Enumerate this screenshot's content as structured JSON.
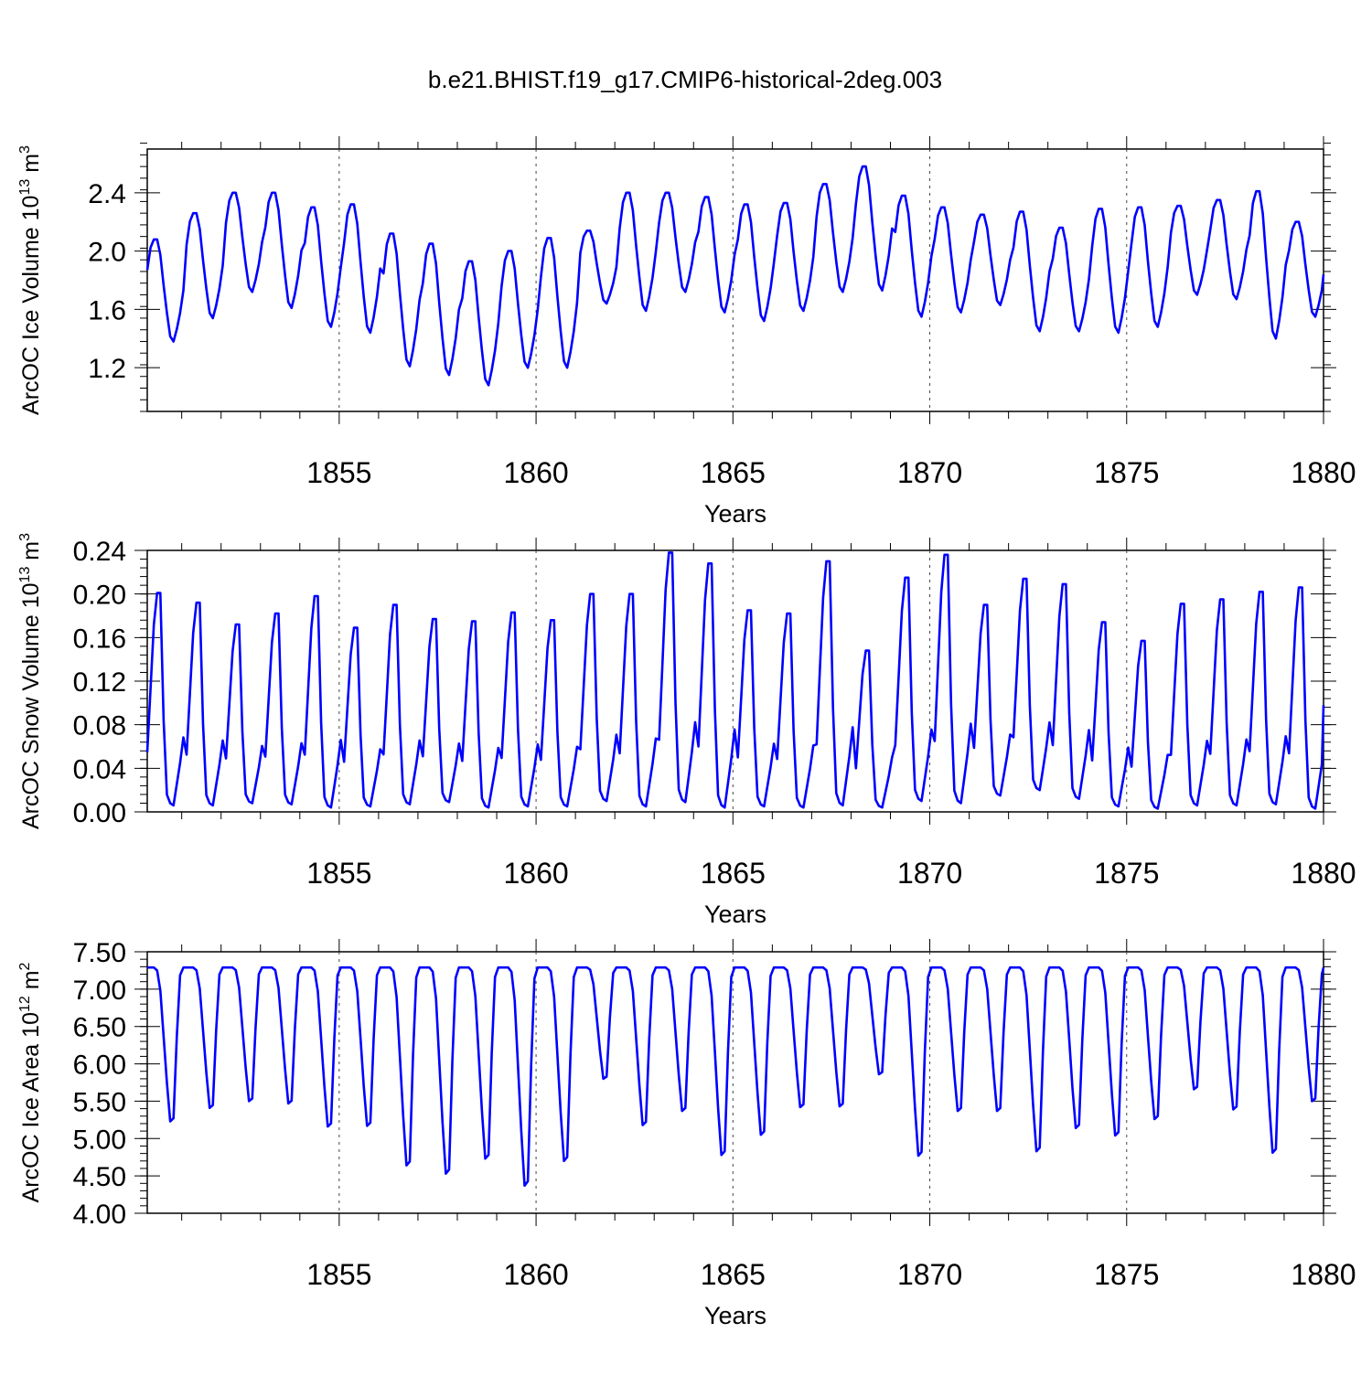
{
  "title": "b.e21.BHIST.f19_g17.CMIP6-historical-2deg.003",
  "line_color": "#0000ff",
  "chart_data": [
    {
      "type": "line",
      "ylabel_base": "ArcOC Ice Volume 10",
      "ylabel_exp": "13",
      "ylabel_unit": " m",
      "ylabel_unit_exp": "3",
      "xlabel": "Years",
      "xlim": [
        1850.125,
        1880.0
      ],
      "ylim": [
        0.9,
        2.7
      ],
      "yticks": [
        1.2,
        1.6,
        2.0,
        2.4
      ],
      "ytick_labels": [
        "1.2",
        "1.6",
        "2.0",
        "2.4"
      ],
      "yminor_step": 0.08,
      "xticks": [
        1855,
        1860,
        1865,
        1870,
        1875,
        1880
      ],
      "xtick_labels": [
        "1855",
        "1860",
        "1865",
        "1870",
        "1875",
        "1880"
      ],
      "x_start": 1850.125,
      "x_step": 0.08333,
      "annual": [
        {
          "max": 2.08,
          "min": 1.38
        },
        {
          "max": 2.26,
          "min": 1.54
        },
        {
          "max": 2.4,
          "min": 1.72
        },
        {
          "max": 2.4,
          "min": 1.61
        },
        {
          "max": 2.3,
          "min": 1.48
        },
        {
          "max": 2.32,
          "min": 1.44
        },
        {
          "max": 2.12,
          "min": 1.21
        },
        {
          "max": 2.05,
          "min": 1.15
        },
        {
          "max": 1.93,
          "min": 1.08
        },
        {
          "max": 2.0,
          "min": 1.2
        },
        {
          "max": 2.09,
          "min": 1.2
        },
        {
          "max": 2.14,
          "min": 1.64
        },
        {
          "max": 2.4,
          "min": 1.59
        },
        {
          "max": 2.4,
          "min": 1.72
        },
        {
          "max": 2.37,
          "min": 1.58
        },
        {
          "max": 2.32,
          "min": 1.52
        },
        {
          "max": 2.33,
          "min": 1.59
        },
        {
          "max": 2.46,
          "min": 1.72
        },
        {
          "max": 2.58,
          "min": 1.73
        },
        {
          "max": 2.38,
          "min": 1.55
        },
        {
          "max": 2.3,
          "min": 1.58
        },
        {
          "max": 2.25,
          "min": 1.63
        },
        {
          "max": 2.27,
          "min": 1.45
        },
        {
          "max": 2.16,
          "min": 1.45
        },
        {
          "max": 2.29,
          "min": 1.44
        },
        {
          "max": 2.3,
          "min": 1.48
        },
        {
          "max": 2.31,
          "min": 1.7
        },
        {
          "max": 2.35,
          "min": 1.67
        },
        {
          "max": 2.41,
          "min": 1.4
        },
        {
          "max": 2.2,
          "min": 1.55
        }
      ],
      "x_end_value": 1.84
    },
    {
      "type": "line",
      "ylabel_base": "ArcOC Snow Volume 10",
      "ylabel_exp": "13",
      "ylabel_unit": " m",
      "ylabel_unit_exp": "3",
      "xlabel": "Years",
      "xlim": [
        1850.125,
        1880.0
      ],
      "ylim": [
        0.0,
        0.24
      ],
      "yticks": [
        0.0,
        0.04,
        0.08,
        0.12,
        0.16,
        0.2,
        0.24
      ],
      "ytick_labels": [
        "0.00",
        "0.04",
        "0.08",
        "0.12",
        "0.16",
        "0.20",
        "0.24"
      ],
      "yminor_step": 0.008,
      "xticks": [
        1855,
        1860,
        1865,
        1870,
        1875,
        1880
      ],
      "xtick_labels": [
        "1855",
        "1860",
        "1865",
        "1870",
        "1875",
        "1880"
      ],
      "x_start": 1850.125,
      "x_step": 0.08333,
      "annual": [
        {
          "max": 0.201,
          "min": 0.006
        },
        {
          "max": 0.192,
          "min": 0.006
        },
        {
          "max": 0.172,
          "min": 0.008
        },
        {
          "max": 0.182,
          "min": 0.007
        },
        {
          "max": 0.198,
          "min": 0.004
        },
        {
          "max": 0.169,
          "min": 0.005
        },
        {
          "max": 0.19,
          "min": 0.007
        },
        {
          "max": 0.177,
          "min": 0.009
        },
        {
          "max": 0.175,
          "min": 0.004
        },
        {
          "max": 0.183,
          "min": 0.005
        },
        {
          "max": 0.176,
          "min": 0.005
        },
        {
          "max": 0.2,
          "min": 0.01
        },
        {
          "max": 0.2,
          "min": 0.005
        },
        {
          "max": 0.238,
          "min": 0.009
        },
        {
          "max": 0.228,
          "min": 0.004
        },
        {
          "max": 0.185,
          "min": 0.005
        },
        {
          "max": 0.182,
          "min": 0.004
        },
        {
          "max": 0.23,
          "min": 0.006
        },
        {
          "max": 0.148,
          "min": 0.004
        },
        {
          "max": 0.215,
          "min": 0.01
        },
        {
          "max": 0.236,
          "min": 0.008
        },
        {
          "max": 0.19,
          "min": 0.015
        },
        {
          "max": 0.214,
          "min": 0.02
        },
        {
          "max": 0.209,
          "min": 0.012
        },
        {
          "max": 0.174,
          "min": 0.005
        },
        {
          "max": 0.157,
          "min": 0.003
        },
        {
          "max": 0.191,
          "min": 0.006
        },
        {
          "max": 0.195,
          "min": 0.006
        },
        {
          "max": 0.202,
          "min": 0.007
        },
        {
          "max": 0.206,
          "min": 0.003
        }
      ],
      "x_end_value": 0.098
    },
    {
      "type": "line",
      "ylabel_base": "ArcOC Ice Area 10",
      "ylabel_exp": "12",
      "ylabel_unit": " m",
      "ylabel_unit_exp": "2",
      "xlabel": "Years",
      "xlim": [
        1850.125,
        1880.0
      ],
      "ylim": [
        4.0,
        7.5
      ],
      "yticks": [
        4.0,
        4.5,
        5.0,
        5.5,
        6.0,
        6.5,
        7.0,
        7.5
      ],
      "ytick_labels": [
        "4.00",
        "4.50",
        "5.00",
        "5.50",
        "6.00",
        "6.50",
        "7.00",
        "7.50"
      ],
      "yminor_step": 0.1,
      "xticks": [
        1855,
        1860,
        1865,
        1870,
        1875,
        1880
      ],
      "xtick_labels": [
        "1855",
        "1860",
        "1865",
        "1870",
        "1875",
        "1880"
      ],
      "x_start": 1850.125,
      "x_step": 0.08333,
      "annual": [
        {
          "max": 7.29,
          "min": 5.23
        },
        {
          "max": 7.29,
          "min": 5.41
        },
        {
          "max": 7.29,
          "min": 5.5
        },
        {
          "max": 7.29,
          "min": 5.47
        },
        {
          "max": 7.29,
          "min": 5.16
        },
        {
          "max": 7.29,
          "min": 5.17
        },
        {
          "max": 7.29,
          "min": 4.64
        },
        {
          "max": 7.29,
          "min": 4.53
        },
        {
          "max": 7.29,
          "min": 4.73
        },
        {
          "max": 7.29,
          "min": 4.37
        },
        {
          "max": 7.29,
          "min": 4.7
        },
        {
          "max": 7.29,
          "min": 5.8
        },
        {
          "max": 7.29,
          "min": 5.18
        },
        {
          "max": 7.29,
          "min": 5.37
        },
        {
          "max": 7.29,
          "min": 4.78
        },
        {
          "max": 7.29,
          "min": 5.05
        },
        {
          "max": 7.29,
          "min": 5.42
        },
        {
          "max": 7.29,
          "min": 5.43
        },
        {
          "max": 7.29,
          "min": 5.86
        },
        {
          "max": 7.29,
          "min": 4.77
        },
        {
          "max": 7.29,
          "min": 5.37
        },
        {
          "max": 7.29,
          "min": 5.37
        },
        {
          "max": 7.29,
          "min": 4.83
        },
        {
          "max": 7.29,
          "min": 5.14
        },
        {
          "max": 7.29,
          "min": 5.04
        },
        {
          "max": 7.29,
          "min": 5.26
        },
        {
          "max": 7.29,
          "min": 5.66
        },
        {
          "max": 7.29,
          "min": 5.39
        },
        {
          "max": 7.29,
          "min": 4.81
        },
        {
          "max": 7.29,
          "min": 5.5
        }
      ],
      "x_end_value": 7.29
    }
  ]
}
